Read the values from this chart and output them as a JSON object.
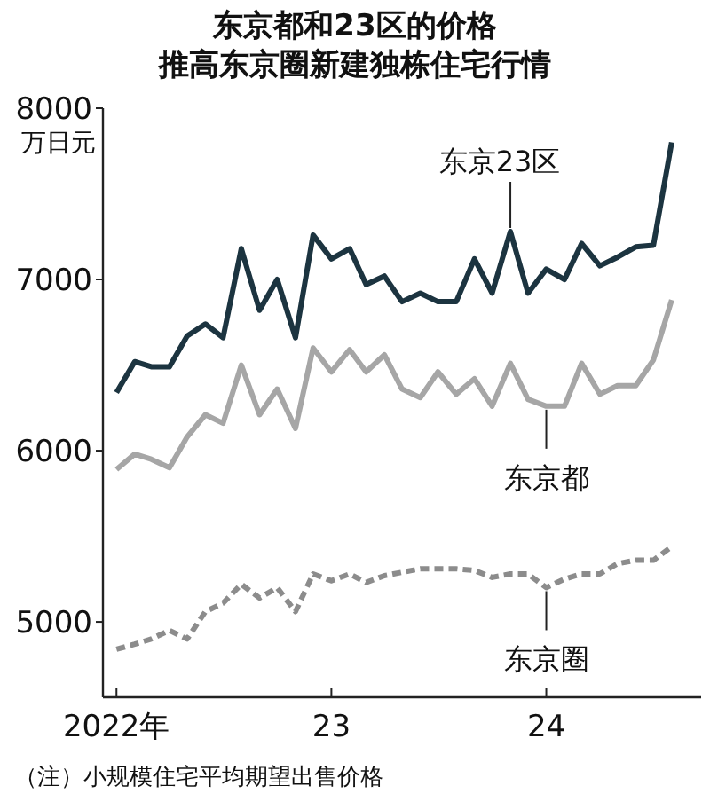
{
  "chart_data": {
    "type": "line",
    "title": "东京都和23区的价格推高东京圈新建独栋住宅行情",
    "ylabel": "万日元",
    "x": [
      "2022-01",
      "2022-02",
      "2022-03",
      "2022-04",
      "2022-05",
      "2022-06",
      "2022-07",
      "2022-08",
      "2022-09",
      "2022-10",
      "2022-11",
      "2022-12",
      "2023-01",
      "2023-02",
      "2023-03",
      "2023-04",
      "2023-05",
      "2023-06",
      "2023-07",
      "2023-08",
      "2023-09",
      "2023-10",
      "2023-11",
      "2023-12",
      "2024-01",
      "2024-02",
      "2024-03",
      "2024-04",
      "2024-05",
      "2024-06",
      "2024-07",
      "2024-08"
    ],
    "series": [
      {
        "name": "东京23区",
        "color": "#1c3440",
        "line_style": "solid",
        "values": [
          6340,
          6520,
          6490,
          6490,
          6670,
          6740,
          6660,
          7180,
          6820,
          7000,
          6660,
          7260,
          7120,
          7180,
          6970,
          7020,
          6870,
          6920,
          6870,
          6870,
          7120,
          6920,
          7280,
          6920,
          7060,
          7000,
          7210,
          7080,
          7130,
          7190,
          7200,
          7800
        ]
      },
      {
        "name": "东京都",
        "color": "#a6a6a6",
        "line_style": "solid",
        "values": [
          5890,
          5980,
          5950,
          5900,
          6080,
          6210,
          6160,
          6500,
          6210,
          6360,
          6130,
          6600,
          6460,
          6590,
          6460,
          6560,
          6360,
          6310,
          6460,
          6330,
          6420,
          6260,
          6510,
          6300,
          6260,
          6260,
          6510,
          6330,
          6380,
          6380,
          6530,
          6880
        ]
      },
      {
        "name": "东京圈",
        "color": "#8c8c8c",
        "line_style": "dashed",
        "values": [
          4840,
          4870,
          4900,
          4950,
          4900,
          5060,
          5110,
          5220,
          5140,
          5200,
          5060,
          5280,
          5240,
          5280,
          5230,
          5270,
          5290,
          5310,
          5310,
          5310,
          5300,
          5260,
          5280,
          5280,
          5200,
          5250,
          5280,
          5280,
          5340,
          5360,
          5360,
          5440
        ]
      }
    ],
    "annotations": [
      "（注）小规模住宅平均期望出售价格"
    ],
    "xlim": [
      "2021-12-09",
      "2024-09-20"
    ],
    "xticks": [
      {
        "value": "2022-01",
        "label": "2022年"
      },
      {
        "value": "2023-01",
        "label": "23"
      },
      {
        "value": "2024-01",
        "label": "24"
      }
    ],
    "ylim": [
      4560,
      8000
    ],
    "yticks": [
      5000,
      6000,
      7000,
      8000
    ],
    "grid": false,
    "legend": false
  }
}
